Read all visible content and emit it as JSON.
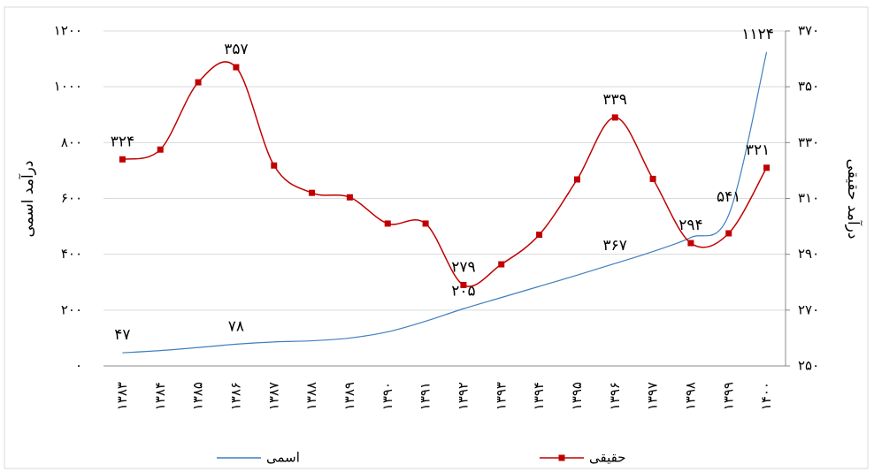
{
  "chart_data": {
    "type": "line",
    "categories": [
      "۱۳۸۳",
      "۱۳۸۴",
      "۱۳۸۵",
      "۱۳۸۶",
      "۱۳۸۷",
      "۱۳۸۸",
      "۱۳۸۹",
      "۱۳۹۰",
      "۱۳۹۱",
      "۱۳۹۲",
      "۱۳۹۳",
      "۱۳۹۴",
      "۱۳۹۵",
      "۱۳۹۶",
      "۱۳۹۷",
      "۱۳۹۸",
      "۱۳۹۹",
      "۱۴۰۰"
    ],
    "ylabel": "درآمد اسمی",
    "y2label": "درآمد حقیقی",
    "ylim": [
      0,
      1200
    ],
    "yticks": [
      {
        "value": 0,
        "label": "۰"
      },
      {
        "value": 200,
        "label": "۲۰۰"
      },
      {
        "value": 400,
        "label": "۴۰۰"
      },
      {
        "value": 600,
        "label": "۶۰۰"
      },
      {
        "value": 800,
        "label": "۸۰۰"
      },
      {
        "value": 1000,
        "label": "۱۰۰۰"
      },
      {
        "value": 1200,
        "label": "۱۲۰۰"
      }
    ],
    "y2lim": [
      250,
      370
    ],
    "y2ticks": [
      {
        "value": 250,
        "label": "۲۵۰"
      },
      {
        "value": 270,
        "label": "۲۷۰"
      },
      {
        "value": 290,
        "label": "۲۹۰"
      },
      {
        "value": 310,
        "label": "۳۱۰"
      },
      {
        "value": 330,
        "label": "۳۳۰"
      },
      {
        "value": 350,
        "label": "۳۵۰"
      },
      {
        "value": 370,
        "label": "۳۷۰"
      }
    ],
    "grid": true,
    "series": [
      {
        "name": "اسمی",
        "color": "#3f7fbf",
        "axis": "y",
        "values": [
          47,
          55,
          66,
          78,
          86,
          90,
          100,
          122,
          160,
          205,
          245,
          285,
          325,
          367,
          410,
          460,
          541,
          1124
        ],
        "value_labels": [
          "۴۷",
          null,
          null,
          "۷۸",
          null,
          null,
          null,
          null,
          null,
          "۲۰۵",
          null,
          null,
          null,
          "۳۶۷",
          null,
          null,
          "۵۴۱",
          "۱۱۲۴"
        ]
      },
      {
        "name": "حقیقی",
        "color": "#c00000",
        "axis": "y2",
        "values": [
          324,
          327.5,
          351.6,
          357,
          321.8,
          312,
          310.4,
          301,
          301,
          279,
          286.4,
          297,
          316.8,
          339,
          317,
          294,
          297.5,
          321
        ],
        "value_labels": [
          "۳۲۴",
          null,
          null,
          "۳۵۷",
          null,
          null,
          null,
          null,
          null,
          "۲۷۹",
          null,
          null,
          null,
          "۳۳۹",
          null,
          "۲۹۴",
          null,
          "۳۲۱"
        ]
      }
    ]
  }
}
